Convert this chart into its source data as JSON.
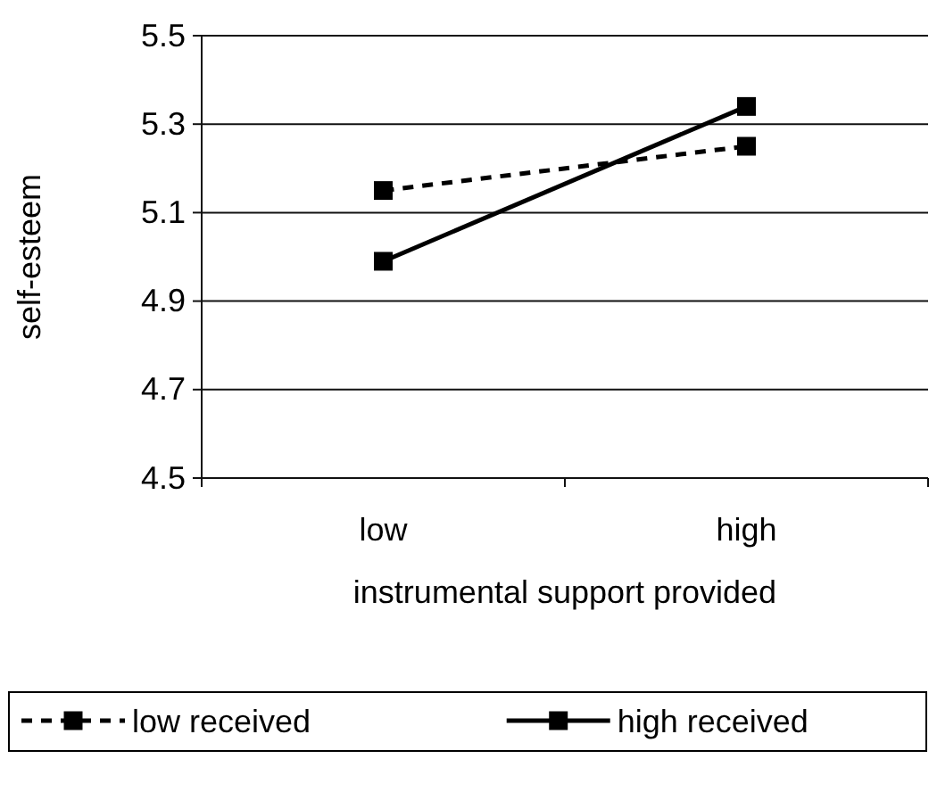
{
  "chart_data": {
    "type": "line",
    "xlabel": "instrumental support provided",
    "ylabel": "self-esteem",
    "categories": [
      "low",
      "high"
    ],
    "series": [
      {
        "name": "low received",
        "color": "#000000",
        "values": [
          5.15,
          5.25
        ],
        "line_style": "dashed"
      },
      {
        "name": "high received",
        "color": "#000000",
        "values": [
          4.99,
          5.34
        ],
        "line_style": "solid"
      }
    ],
    "ylim": [
      4.5,
      5.5
    ],
    "yticks": [
      4.5,
      4.7,
      4.9,
      5.1,
      5.3,
      5.5
    ],
    "grid": "y",
    "legend": "bottom",
    "marker": "square"
  }
}
